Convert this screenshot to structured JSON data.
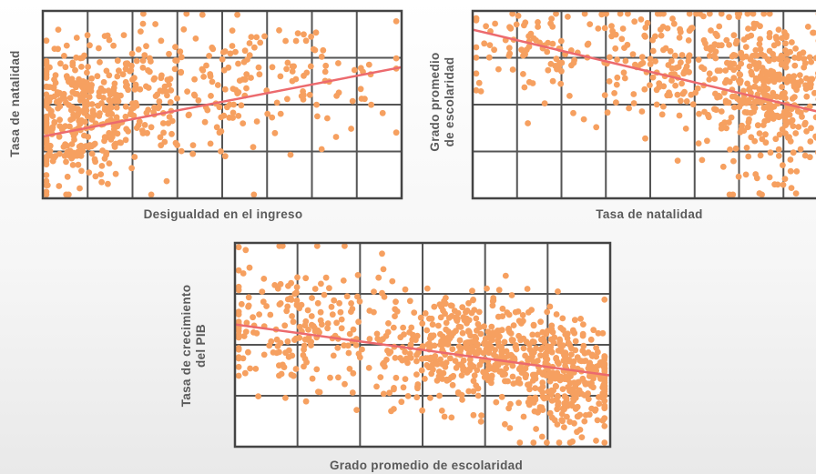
{
  "colors": {
    "point": "#f6a060",
    "trend": "#ec6a6e",
    "frame": "#444444",
    "grid": "#555555"
  },
  "chart_data": [
    {
      "type": "scatter",
      "title": "",
      "xlabel": "Desigualdad en el ingreso",
      "ylabel": [
        "Tasa de natalidad"
      ],
      "grid": true,
      "trendline": {
        "x": [
          0,
          1
        ],
        "y": [
          0.33,
          0.7
        ]
      },
      "cloud": [
        {
          "cx": 0.1,
          "cy": 0.45,
          "sx": 0.09,
          "sy": 0.18,
          "n": 320
        },
        {
          "cx": 0.35,
          "cy": 0.55,
          "sx": 0.16,
          "sy": 0.18,
          "n": 180
        },
        {
          "cx": 0.68,
          "cy": 0.62,
          "sx": 0.16,
          "sy": 0.16,
          "n": 90
        }
      ]
    },
    {
      "type": "scatter",
      "title": "",
      "xlabel": "Tasa de natalidad",
      "ylabel": [
        "Grado promedio",
        "de escolaridad"
      ],
      "grid": true,
      "trendline": {
        "x": [
          0,
          1
        ],
        "y": [
          0.9,
          0.45
        ]
      },
      "cloud": [
        {
          "cx": 0.18,
          "cy": 0.8,
          "sx": 0.13,
          "sy": 0.14,
          "n": 80
        },
        {
          "cx": 0.55,
          "cy": 0.72,
          "sx": 0.14,
          "sy": 0.18,
          "n": 200
        },
        {
          "cx": 0.86,
          "cy": 0.55,
          "sx": 0.1,
          "sy": 0.2,
          "n": 380
        }
      ]
    },
    {
      "type": "scatter",
      "title": "",
      "xlabel": "Grado promedio de escolaridad",
      "ylabel": [
        "Tasa de crecimiento",
        "del PIB"
      ],
      "grid": true,
      "trendline": {
        "x": [
          0,
          1
        ],
        "y": [
          0.6,
          0.35
        ]
      },
      "cloud": [
        {
          "cx": 0.18,
          "cy": 0.58,
          "sx": 0.13,
          "sy": 0.16,
          "n": 200
        },
        {
          "cx": 0.62,
          "cy": 0.48,
          "sx": 0.12,
          "sy": 0.14,
          "n": 420
        },
        {
          "cx": 0.88,
          "cy": 0.34,
          "sx": 0.08,
          "sy": 0.14,
          "n": 320
        }
      ]
    }
  ]
}
